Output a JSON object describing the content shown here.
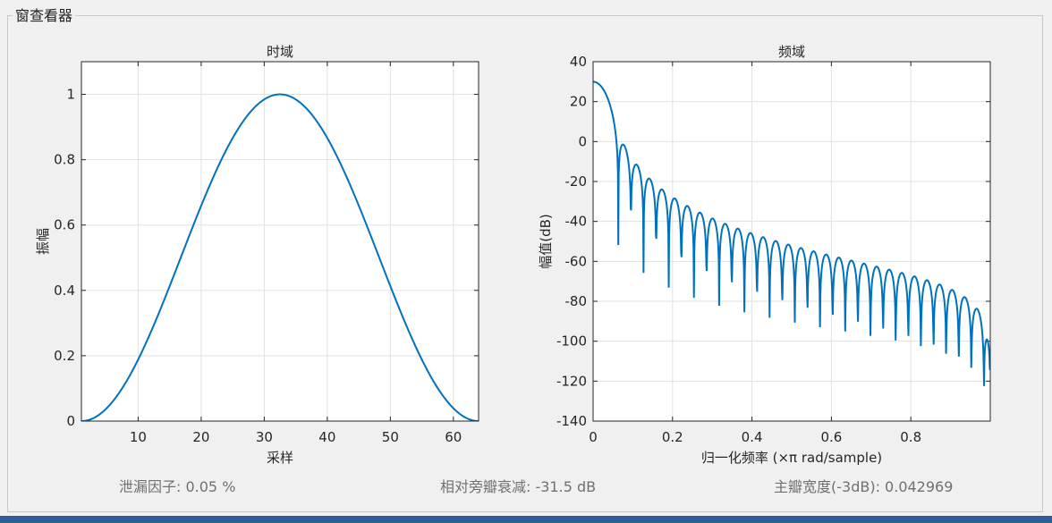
{
  "panel": {
    "title": "窗查看器"
  },
  "stats": {
    "leakage": "泄漏因子: 0.05 %",
    "sidelobe": "相对旁瓣衰减: -31.5 dB",
    "mainlobe": "主瓣宽度(-3dB): 0.042969"
  },
  "colors": {
    "line": "#0072bd",
    "grid": "#e1e1e1",
    "axes": "#262626"
  },
  "chart_data": [
    {
      "type": "line",
      "title": "时域",
      "xlabel": "采样",
      "ylabel": "振幅",
      "xlim": [
        1,
        64
      ],
      "ylim": [
        0,
        1.1
      ],
      "xticks": [
        10,
        20,
        30,
        40,
        50,
        60
      ],
      "yticks": [
        0,
        0.2,
        0.4,
        0.6,
        0.8,
        1
      ],
      "grid": true,
      "window": "hann",
      "length": 64,
      "series": [
        {
          "function": "0.5*(1-cos(2*pi*(n-1)/63)), n=1..64"
        }
      ]
    },
    {
      "type": "line",
      "title": "频域",
      "xlabel": "归一化频率  (×π rad/sample)",
      "ylabel": "幅值(dB)",
      "xlim": [
        0,
        1
      ],
      "ylim": [
        -140,
        40
      ],
      "xticks": [
        0,
        0.2,
        0.4,
        0.6,
        0.8
      ],
      "yticks": [
        40,
        20,
        0,
        -20,
        -40,
        -60,
        -80,
        -100,
        -120,
        -140
      ],
      "grid": true,
      "series": [
        {
          "function": "20*log10(|DFT of hann(64)|)",
          "peak_db": 30.1
        }
      ]
    }
  ]
}
